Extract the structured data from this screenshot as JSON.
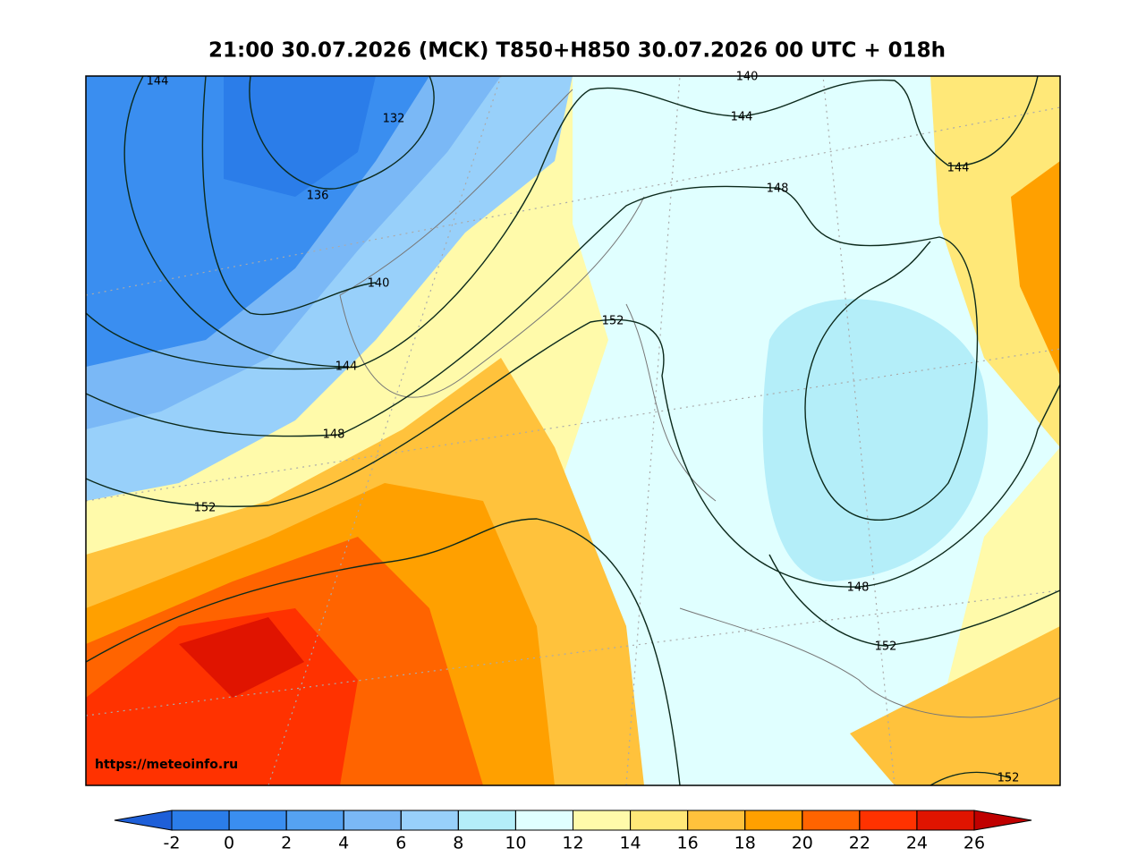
{
  "title": "21:00 30.07.2026 (MCK) T850+H850 30.07.2026 00 UTC + 018h",
  "watermark": "https://meteoinfo.ru",
  "contour_labels": [
    "144",
    "132",
    "136",
    "140",
    "140",
    "144",
    "148",
    "144",
    "148",
    "144",
    "152",
    "152",
    "148",
    "152",
    "152"
  ],
  "colorbar": {
    "ticks": [
      -2,
      0,
      2,
      4,
      6,
      8,
      10,
      12,
      14,
      16,
      18,
      20,
      22,
      24,
      26
    ],
    "colors": [
      "#1e5fd8",
      "#2b7de9",
      "#3a8ef0",
      "#55a2f2",
      "#7ab8f6",
      "#98d0fa",
      "#b4eef9",
      "#e0ffff",
      "#fffaaa",
      "#ffe878",
      "#ffc23c",
      "#ffa000",
      "#ff6400",
      "#ff3200",
      "#e01400",
      "#c00000"
    ]
  }
}
